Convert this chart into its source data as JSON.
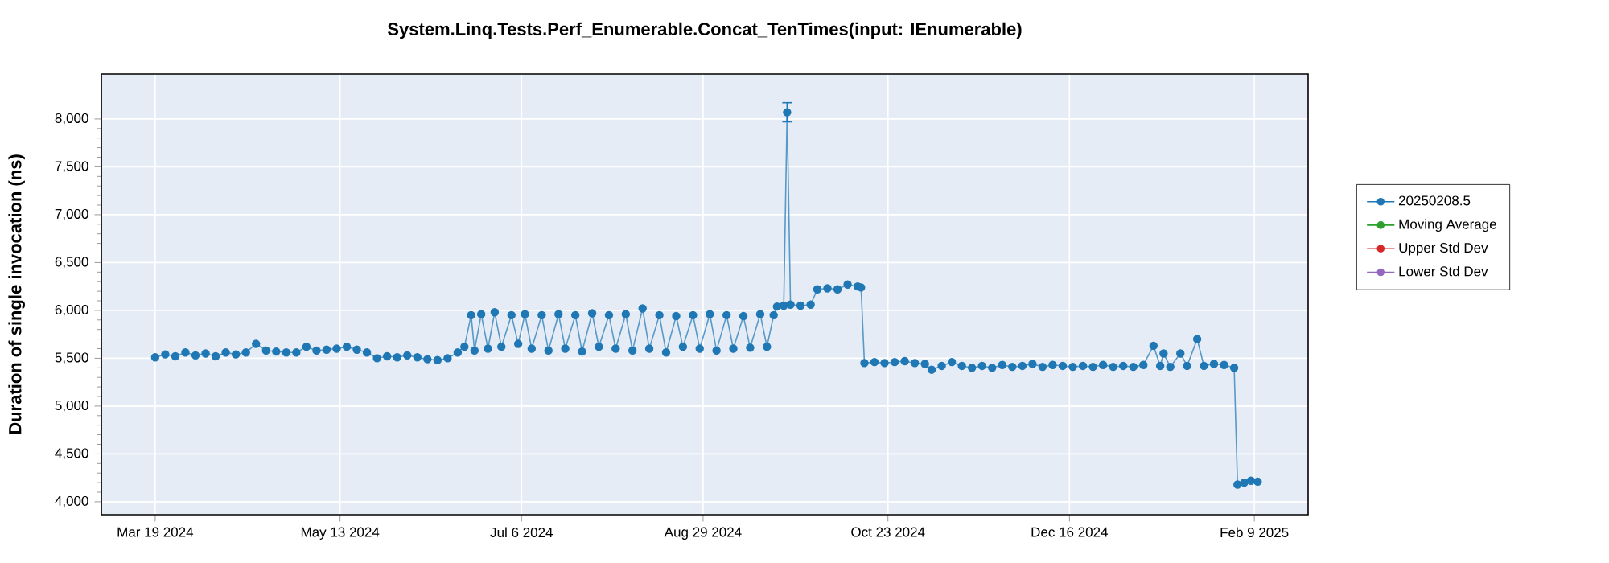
{
  "chart_data": {
    "type": "line",
    "title": "System.Linq.Tests.Perf_Enumerable.Concat_TenTimes(input: IEnumerable)",
    "ylabel": "Duration of single invocation (ns)",
    "xlim": [
      "2024-03-03",
      "2025-02-25"
    ],
    "xticks": [
      {
        "value": "2024-03-19",
        "label": "Mar 19 2024"
      },
      {
        "value": "2024-05-13",
        "label": "May 13 2024"
      },
      {
        "value": "2024-07-06",
        "label": "Jul 6 2024"
      },
      {
        "value": "2024-08-29",
        "label": "Aug 29 2024"
      },
      {
        "value": "2024-10-23",
        "label": "Oct 23 2024"
      },
      {
        "value": "2024-12-16",
        "label": "Dec 16 2024"
      },
      {
        "value": "2025-02-09",
        "label": "Feb 9 2025"
      }
    ],
    "ylim": [
      3865,
      8470
    ],
    "yticks": [
      {
        "value": 4000,
        "label": "4,000"
      },
      {
        "value": 4500,
        "label": "4,500"
      },
      {
        "value": 5000,
        "label": "5,000"
      },
      {
        "value": 5500,
        "label": "5,500"
      },
      {
        "value": 6000,
        "label": "6,000"
      },
      {
        "value": 6500,
        "label": "6,500"
      },
      {
        "value": 7000,
        "label": "7,000"
      },
      {
        "value": 7500,
        "label": "7,500"
      },
      {
        "value": 8000,
        "label": "8,000"
      }
    ],
    "grid": true,
    "legend": "right",
    "marker": "circle",
    "line_style": "solid",
    "series": [
      {
        "name": "20250208.5",
        "color": "#1f77b4",
        "x": [
          "2024-03-19",
          "2024-03-22",
          "2024-03-25",
          "2024-03-28",
          "2024-03-31",
          "2024-04-03",
          "2024-04-06",
          "2024-04-09",
          "2024-04-12",
          "2024-04-15",
          "2024-04-18",
          "2024-04-21",
          "2024-04-24",
          "2024-04-27",
          "2024-04-30",
          "2024-05-03",
          "2024-05-06",
          "2024-05-09",
          "2024-05-12",
          "2024-05-15",
          "2024-05-18",
          "2024-05-21",
          "2024-05-24",
          "2024-05-27",
          "2024-05-30",
          "2024-06-02",
          "2024-06-05",
          "2024-06-08",
          "2024-06-11",
          "2024-06-14",
          "2024-06-17",
          "2024-06-19",
          "2024-06-21",
          "2024-06-22",
          "2024-06-24",
          "2024-06-26",
          "2024-06-28",
          "2024-06-30",
          "2024-07-03",
          "2024-07-05",
          "2024-07-07",
          "2024-07-09",
          "2024-07-12",
          "2024-07-14",
          "2024-07-17",
          "2024-07-19",
          "2024-07-22",
          "2024-07-24",
          "2024-07-27",
          "2024-07-29",
          "2024-08-01",
          "2024-08-03",
          "2024-08-06",
          "2024-08-08",
          "2024-08-11",
          "2024-08-13",
          "2024-08-16",
          "2024-08-18",
          "2024-08-21",
          "2024-08-23",
          "2024-08-26",
          "2024-08-28",
          "2024-08-31",
          "2024-09-02",
          "2024-09-05",
          "2024-09-07",
          "2024-09-10",
          "2024-09-12",
          "2024-09-15",
          "2024-09-17",
          "2024-09-19",
          "2024-09-20",
          "2024-09-22",
          "2024-09-23",
          "2024-09-24",
          "2024-09-27",
          "2024-09-30",
          "2024-10-02",
          "2024-10-05",
          "2024-10-08",
          "2024-10-11",
          "2024-10-14",
          "2024-10-15",
          "2024-10-16",
          "2024-10-19",
          "2024-10-22",
          "2024-10-25",
          "2024-10-28",
          "2024-10-31",
          "2024-11-03",
          "2024-11-05",
          "2024-11-08",
          "2024-11-11",
          "2024-11-14",
          "2024-11-17",
          "2024-11-20",
          "2024-11-23",
          "2024-11-26",
          "2024-11-29",
          "2024-12-02",
          "2024-12-05",
          "2024-12-08",
          "2024-12-11",
          "2024-12-14",
          "2024-12-17",
          "2024-12-20",
          "2024-12-23",
          "2024-12-26",
          "2024-12-29",
          "2025-01-01",
          "2025-01-04",
          "2025-01-07",
          "2025-01-10",
          "2025-01-12",
          "2025-01-13",
          "2025-01-15",
          "2025-01-18",
          "2025-01-20",
          "2025-01-23",
          "2025-01-25",
          "2025-01-28",
          "2025-01-31",
          "2025-02-03",
          "2025-02-04",
          "2025-02-06",
          "2025-02-08",
          "2025-02-10"
        ],
        "values": [
          5510,
          5540,
          5520,
          5560,
          5530,
          5550,
          5520,
          5560,
          5540,
          5560,
          5650,
          5580,
          5570,
          5560,
          5560,
          5620,
          5580,
          5590,
          5600,
          5620,
          5590,
          5560,
          5500,
          5520,
          5510,
          5530,
          5510,
          5490,
          5480,
          5500,
          5560,
          5620,
          5950,
          5580,
          5960,
          5600,
          5980,
          5620,
          5950,
          5650,
          5960,
          5600,
          5950,
          5580,
          5960,
          5600,
          5950,
          5570,
          5970,
          5620,
          5950,
          5600,
          5960,
          5580,
          6020,
          5600,
          5950,
          5560,
          5940,
          5620,
          5950,
          5600,
          5960,
          5580,
          5950,
          5600,
          5940,
          5610,
          5960,
          5620,
          5950,
          6040,
          6050,
          8070,
          6060,
          6050,
          6060,
          6220,
          6230,
          6220,
          6270,
          6250,
          6240,
          5450,
          5460,
          5450,
          5460,
          5470,
          5450,
          5440,
          5380,
          5420,
          5460,
          5420,
          5400,
          5420,
          5400,
          5430,
          5410,
          5420,
          5440,
          5410,
          5430,
          5420,
          5410,
          5420,
          5410,
          5430,
          5410,
          5420,
          5410,
          5430,
          5630,
          5420,
          5550,
          5410,
          5550,
          5420,
          5700,
          5420,
          5440,
          5430,
          5400,
          4180,
          4200,
          4220,
          4210
        ],
        "errors": [
          null,
          null,
          null,
          null,
          null,
          null,
          null,
          null,
          null,
          null,
          null,
          null,
          null,
          null,
          null,
          null,
          null,
          null,
          null,
          null,
          null,
          null,
          null,
          null,
          null,
          null,
          null,
          null,
          null,
          null,
          null,
          null,
          null,
          null,
          null,
          null,
          null,
          null,
          null,
          null,
          null,
          null,
          null,
          null,
          null,
          null,
          null,
          null,
          null,
          null,
          null,
          null,
          null,
          null,
          null,
          null,
          null,
          null,
          null,
          null,
          null,
          null,
          null,
          null,
          null,
          null,
          null,
          null,
          null,
          null,
          null,
          null,
          null,
          [
            7970,
            8170
          ],
          null,
          null,
          null,
          null,
          null,
          null,
          null,
          null,
          null,
          null,
          null,
          null,
          null,
          null,
          null,
          null,
          null,
          null,
          null,
          null,
          null,
          null,
          null,
          null,
          null,
          null,
          null,
          null,
          null,
          null,
          null,
          null,
          null,
          null,
          null,
          null,
          null,
          null,
          null,
          null,
          null,
          null,
          null,
          null,
          null,
          null,
          null,
          null,
          null,
          null,
          null,
          null,
          null
        ]
      },
      {
        "name": "Moving Average",
        "color": "#2ca02c"
      },
      {
        "name": "Upper Std Dev",
        "color": "#d62728"
      },
      {
        "name": "Lower Std Dev",
        "color": "#9467bd"
      }
    ]
  }
}
